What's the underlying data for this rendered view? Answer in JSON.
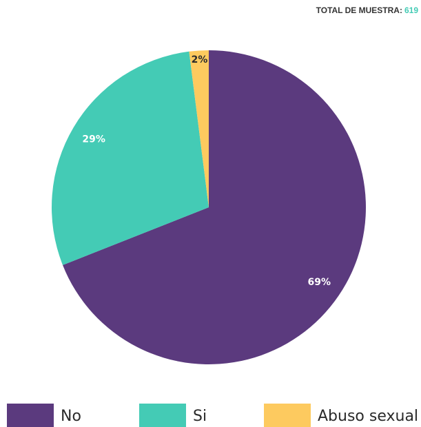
{
  "chart_data": {
    "type": "pie",
    "sample_label": "TOTAL DE MUESTRA:",
    "sample_total": 619,
    "categories": [
      "No",
      "Si",
      "Abuso sexual"
    ],
    "values": [
      69,
      29,
      2
    ],
    "value_labels": [
      "69%",
      "29%",
      "2%"
    ],
    "colors": [
      "#5b3a7e",
      "#44cbb5",
      "#fdca5f"
    ]
  }
}
